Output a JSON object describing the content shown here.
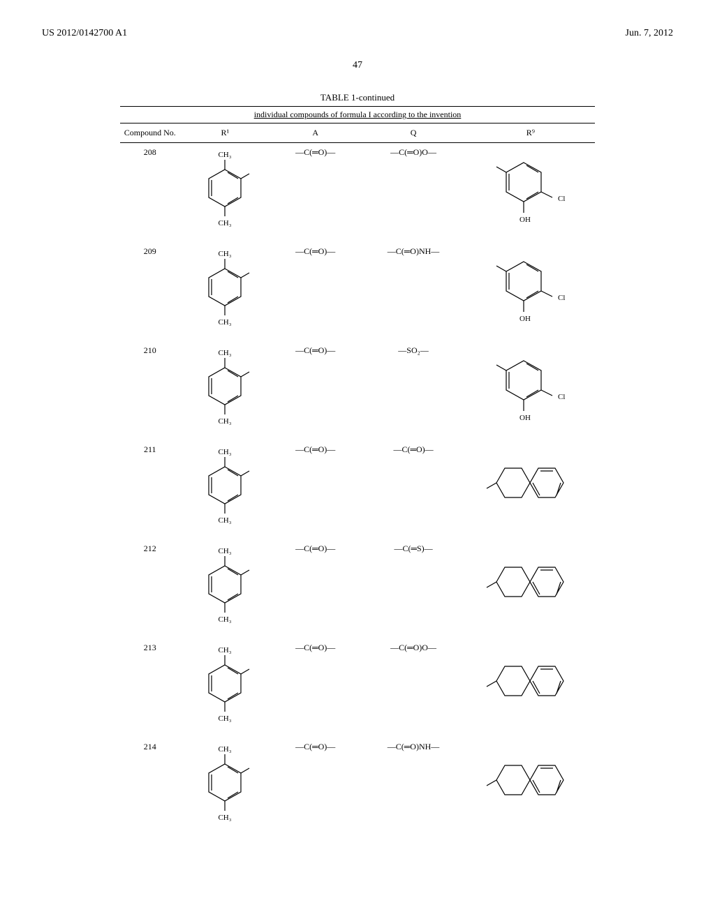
{
  "header": {
    "left": "US 2012/0142700 A1",
    "right": "Jun. 7, 2012"
  },
  "page_number": "47",
  "table": {
    "title": "TABLE 1-continued",
    "caption": "individual compounds of formula I according to the invention",
    "columns": [
      {
        "label": "Compound No."
      },
      {
        "label": "R¹"
      },
      {
        "label": "A"
      },
      {
        "label": "Q"
      },
      {
        "label": "R⁹"
      }
    ],
    "rows": [
      {
        "no": "208",
        "A": "—C(═O)—",
        "Q": "—C(═O)O—",
        "R9_type": "phenyl_cl_oh"
      },
      {
        "no": "209",
        "A": "—C(═O)—",
        "Q": "—C(═O)NH—",
        "R9_type": "phenyl_cl_oh"
      },
      {
        "no": "210",
        "A": "—C(═O)—",
        "Q": "—SO₂—",
        "R9_type": "phenyl_cl_oh"
      },
      {
        "no": "211",
        "A": "—C(═O)—",
        "Q": "—C(═O)—",
        "R9_type": "tetralin"
      },
      {
        "no": "212",
        "A": "—C(═O)—",
        "Q": "—C(═S)—",
        "R9_type": "tetralin"
      },
      {
        "no": "213",
        "A": "—C(═O)—",
        "Q": "—C(═O)O—",
        "R9_type": "tetralin"
      },
      {
        "no": "214",
        "A": "—C(═O)—",
        "Q": "—C(═O)NH—",
        "R9_type": "tetralin"
      }
    ],
    "r1_labels": {
      "top": "CH₃",
      "bottom": "CH₃"
    },
    "r9_phenyl": {
      "cl": "Cl",
      "oh": "OH"
    }
  },
  "style": {
    "stroke_color": "#000000",
    "stroke_width": 1.2,
    "text_color": "#000000",
    "background": "#ffffff",
    "table_border": "#000000",
    "font_size_body": 12,
    "font_size_header": 14,
    "font_family": "Times New Roman"
  }
}
